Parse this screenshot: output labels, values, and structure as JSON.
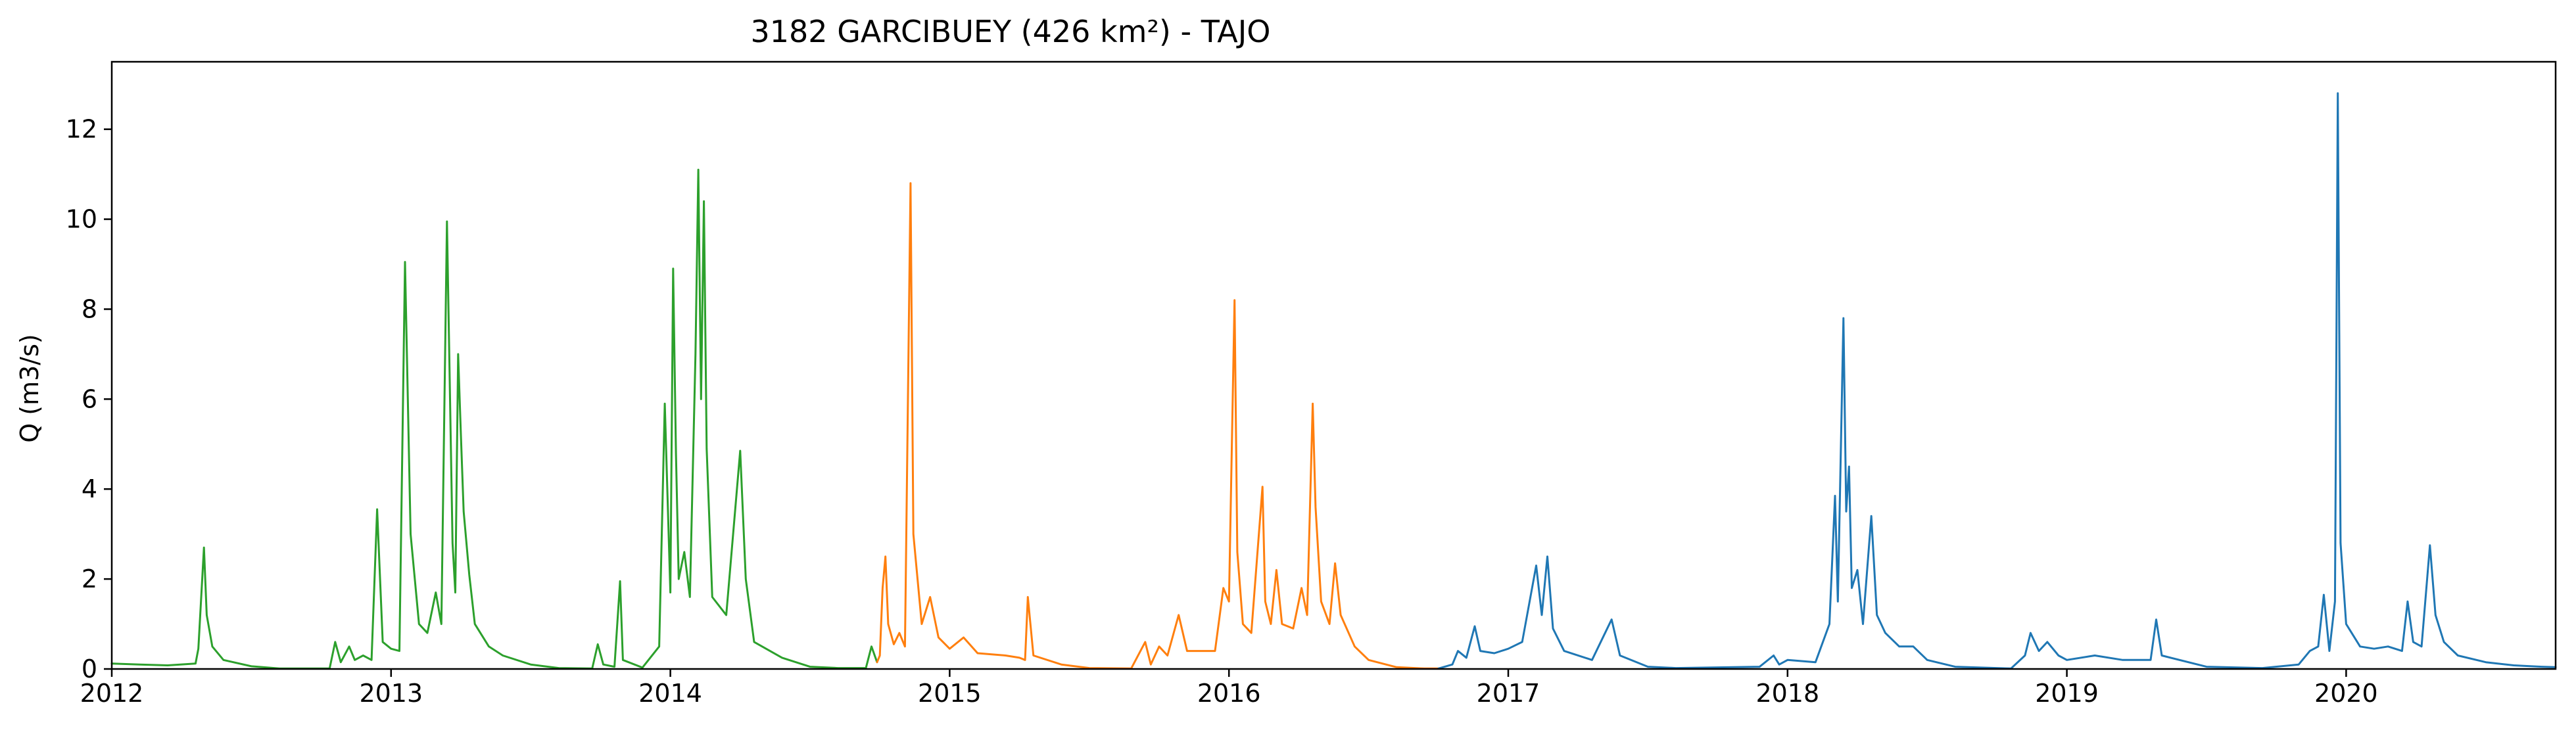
{
  "chart_data": {
    "type": "line",
    "title": "3182 GARCIBUEY (426 km²) - TAJO",
    "xlabel": "",
    "ylabel": "Q (m3/s)",
    "xlim": [
      2012.0,
      2020.75
    ],
    "ylim": [
      0,
      13.5
    ],
    "grid": false,
    "legend": "none",
    "x_ticks": [
      {
        "value": 2012,
        "label": "2012"
      },
      {
        "value": 2013,
        "label": "2013"
      },
      {
        "value": 2014,
        "label": "2014"
      },
      {
        "value": 2015,
        "label": "2015"
      },
      {
        "value": 2016,
        "label": "2016"
      },
      {
        "value": 2017,
        "label": "2017"
      },
      {
        "value": 2018,
        "label": "2018"
      },
      {
        "value": 2019,
        "label": "2019"
      },
      {
        "value": 2020,
        "label": "2020"
      }
    ],
    "y_ticks": [
      {
        "value": 0,
        "label": "0"
      },
      {
        "value": 2,
        "label": "2"
      },
      {
        "value": 4,
        "label": "4"
      },
      {
        "value": 6,
        "label": "6"
      },
      {
        "value": 8,
        "label": "8"
      },
      {
        "value": 10,
        "label": "10"
      },
      {
        "value": 12,
        "label": "12"
      }
    ],
    "series": [
      {
        "color": "#2ca02c",
        "points": [
          [
            2012.0,
            0.12
          ],
          [
            2012.1,
            0.1
          ],
          [
            2012.2,
            0.08
          ],
          [
            2012.3,
            0.12
          ],
          [
            2012.31,
            0.45
          ],
          [
            2012.33,
            2.7
          ],
          [
            2012.34,
            1.2
          ],
          [
            2012.36,
            0.5
          ],
          [
            2012.4,
            0.2
          ],
          [
            2012.5,
            0.06
          ],
          [
            2012.6,
            0.01
          ],
          [
            2012.78,
            0.01
          ],
          [
            2012.8,
            0.6
          ],
          [
            2012.82,
            0.15
          ],
          [
            2012.85,
            0.5
          ],
          [
            2012.87,
            0.2
          ],
          [
            2012.9,
            0.3
          ],
          [
            2012.93,
            0.2
          ],
          [
            2012.95,
            3.55
          ],
          [
            2012.97,
            0.6
          ],
          [
            2013.0,
            0.45
          ],
          [
            2013.03,
            0.4
          ],
          [
            2013.05,
            9.05
          ],
          [
            2013.07,
            3.0
          ],
          [
            2013.1,
            1.0
          ],
          [
            2013.13,
            0.8
          ],
          [
            2013.16,
            1.7
          ],
          [
            2013.18,
            1.0
          ],
          [
            2013.2,
            9.95
          ],
          [
            2013.22,
            2.8
          ],
          [
            2013.23,
            1.7
          ],
          [
            2013.24,
            7.0
          ],
          [
            2013.25,
            5.2
          ],
          [
            2013.26,
            3.5
          ],
          [
            2013.28,
            2.1
          ],
          [
            2013.3,
            1.0
          ],
          [
            2013.35,
            0.5
          ],
          [
            2013.4,
            0.3
          ],
          [
            2013.5,
            0.1
          ],
          [
            2013.6,
            0.02
          ],
          [
            2013.72,
            0.01
          ],
          [
            2013.74,
            0.55
          ],
          [
            2013.76,
            0.1
          ],
          [
            2013.8,
            0.05
          ],
          [
            2013.82,
            1.95
          ],
          [
            2013.83,
            0.2
          ],
          [
            2013.9,
            0.03
          ],
          [
            2013.96,
            0.5
          ],
          [
            2013.98,
            5.9
          ],
          [
            2014.0,
            1.7
          ],
          [
            2014.01,
            8.9
          ],
          [
            2014.02,
            4.8
          ],
          [
            2014.03,
            2.0
          ],
          [
            2014.05,
            2.6
          ],
          [
            2014.07,
            1.6
          ],
          [
            2014.09,
            7.0
          ],
          [
            2014.1,
            11.1
          ],
          [
            2014.11,
            6.0
          ],
          [
            2014.12,
            10.4
          ],
          [
            2014.13,
            4.9
          ],
          [
            2014.15,
            1.6
          ],
          [
            2014.2,
            1.2
          ],
          [
            2014.25,
            4.85
          ],
          [
            2014.27,
            2.0
          ],
          [
            2014.3,
            0.6
          ],
          [
            2014.4,
            0.25
          ],
          [
            2014.5,
            0.05
          ],
          [
            2014.6,
            0.02
          ],
          [
            2014.7,
            0.02
          ],
          [
            2014.72,
            0.5
          ],
          [
            2014.74,
            0.15
          ]
        ]
      },
      {
        "color": "#ff7f0e",
        "points": [
          [
            2014.74,
            0.15
          ],
          [
            2014.75,
            0.3
          ],
          [
            2014.76,
            1.8
          ],
          [
            2014.77,
            2.5
          ],
          [
            2014.78,
            1.0
          ],
          [
            2014.8,
            0.55
          ],
          [
            2014.82,
            0.8
          ],
          [
            2014.84,
            0.5
          ],
          [
            2014.86,
            10.8
          ],
          [
            2014.87,
            3.0
          ],
          [
            2014.9,
            1.0
          ],
          [
            2014.93,
            1.6
          ],
          [
            2014.96,
            0.7
          ],
          [
            2015.0,
            0.45
          ],
          [
            2015.05,
            0.7
          ],
          [
            2015.1,
            0.35
          ],
          [
            2015.2,
            0.3
          ],
          [
            2015.25,
            0.25
          ],
          [
            2015.27,
            0.2
          ],
          [
            2015.28,
            1.6
          ],
          [
            2015.3,
            0.3
          ],
          [
            2015.4,
            0.1
          ],
          [
            2015.5,
            0.02
          ],
          [
            2015.65,
            0.01
          ],
          [
            2015.7,
            0.6
          ],
          [
            2015.72,
            0.1
          ],
          [
            2015.75,
            0.5
          ],
          [
            2015.78,
            0.3
          ],
          [
            2015.82,
            1.2
          ],
          [
            2015.85,
            0.4
          ],
          [
            2015.95,
            0.4
          ],
          [
            2015.98,
            1.8
          ],
          [
            2016.0,
            1.5
          ],
          [
            2016.02,
            8.2
          ],
          [
            2016.03,
            2.6
          ],
          [
            2016.05,
            1.0
          ],
          [
            2016.08,
            0.8
          ],
          [
            2016.12,
            4.05
          ],
          [
            2016.13,
            1.5
          ],
          [
            2016.15,
            1.0
          ],
          [
            2016.17,
            2.2
          ],
          [
            2016.19,
            1.0
          ],
          [
            2016.23,
            0.9
          ],
          [
            2016.26,
            1.8
          ],
          [
            2016.28,
            1.2
          ],
          [
            2016.3,
            5.9
          ],
          [
            2016.31,
            3.6
          ],
          [
            2016.33,
            1.5
          ],
          [
            2016.36,
            1.0
          ],
          [
            2016.38,
            2.35
          ],
          [
            2016.4,
            1.2
          ],
          [
            2016.45,
            0.5
          ],
          [
            2016.5,
            0.2
          ],
          [
            2016.6,
            0.04
          ],
          [
            2016.7,
            0.01
          ],
          [
            2016.75,
            0.01
          ]
        ]
      },
      {
        "color": "#1f77b4",
        "points": [
          [
            2016.75,
            0.01
          ],
          [
            2016.8,
            0.1
          ],
          [
            2016.82,
            0.4
          ],
          [
            2016.85,
            0.25
          ],
          [
            2016.88,
            0.95
          ],
          [
            2016.9,
            0.4
          ],
          [
            2016.95,
            0.35
          ],
          [
            2017.0,
            0.45
          ],
          [
            2017.05,
            0.6
          ],
          [
            2017.1,
            2.3
          ],
          [
            2017.12,
            1.2
          ],
          [
            2017.14,
            2.5
          ],
          [
            2017.16,
            0.9
          ],
          [
            2017.2,
            0.4
          ],
          [
            2017.3,
            0.2
          ],
          [
            2017.37,
            1.1
          ],
          [
            2017.4,
            0.3
          ],
          [
            2017.5,
            0.05
          ],
          [
            2017.6,
            0.02
          ],
          [
            2017.9,
            0.05
          ],
          [
            2017.95,
            0.3
          ],
          [
            2017.97,
            0.1
          ],
          [
            2018.0,
            0.2
          ],
          [
            2018.1,
            0.15
          ],
          [
            2018.15,
            1.0
          ],
          [
            2018.17,
            3.85
          ],
          [
            2018.18,
            1.5
          ],
          [
            2018.2,
            7.8
          ],
          [
            2018.21,
            3.5
          ],
          [
            2018.22,
            4.5
          ],
          [
            2018.23,
            1.8
          ],
          [
            2018.25,
            2.2
          ],
          [
            2018.27,
            1.0
          ],
          [
            2018.3,
            3.4
          ],
          [
            2018.32,
            1.2
          ],
          [
            2018.35,
            0.8
          ],
          [
            2018.4,
            0.5
          ],
          [
            2018.45,
            0.5
          ],
          [
            2018.5,
            0.2
          ],
          [
            2018.6,
            0.05
          ],
          [
            2018.8,
            0.01
          ],
          [
            2018.85,
            0.3
          ],
          [
            2018.87,
            0.8
          ],
          [
            2018.9,
            0.4
          ],
          [
            2018.93,
            0.6
          ],
          [
            2018.97,
            0.3
          ],
          [
            2019.0,
            0.2
          ],
          [
            2019.1,
            0.3
          ],
          [
            2019.2,
            0.2
          ],
          [
            2019.3,
            0.2
          ],
          [
            2019.32,
            1.1
          ],
          [
            2019.34,
            0.3
          ],
          [
            2019.5,
            0.05
          ],
          [
            2019.7,
            0.02
          ],
          [
            2019.83,
            0.1
          ],
          [
            2019.87,
            0.4
          ],
          [
            2019.9,
            0.5
          ],
          [
            2019.92,
            1.65
          ],
          [
            2019.94,
            0.4
          ],
          [
            2019.96,
            1.5
          ],
          [
            2019.97,
            12.8
          ],
          [
            2019.98,
            2.8
          ],
          [
            2020.0,
            1.0
          ],
          [
            2020.05,
            0.5
          ],
          [
            2020.1,
            0.45
          ],
          [
            2020.15,
            0.5
          ],
          [
            2020.2,
            0.4
          ],
          [
            2020.22,
            1.5
          ],
          [
            2020.24,
            0.6
          ],
          [
            2020.27,
            0.5
          ],
          [
            2020.3,
            2.75
          ],
          [
            2020.32,
            1.2
          ],
          [
            2020.35,
            0.6
          ],
          [
            2020.4,
            0.3
          ],
          [
            2020.5,
            0.15
          ],
          [
            2020.6,
            0.08
          ],
          [
            2020.7,
            0.05
          ],
          [
            2020.75,
            0.04
          ]
        ]
      }
    ]
  }
}
